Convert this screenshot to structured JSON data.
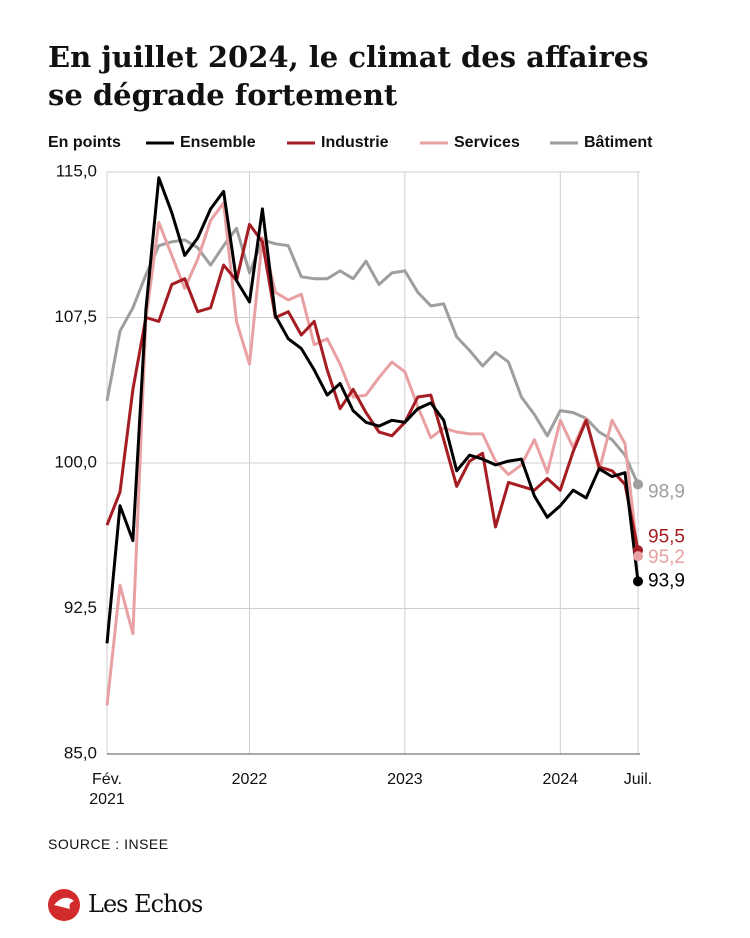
{
  "chart_data": {
    "type": "line",
    "title": "En juillet 2024, le climat des affaires se dégrade fortement",
    "y_label": "En points",
    "source": "SOURCE : INSEE",
    "logo": "Les Echos",
    "x": [
      "2021-02",
      "2021-03",
      "2021-04",
      "2021-05",
      "2021-06",
      "2021-07",
      "2021-08",
      "2021-09",
      "2021-10",
      "2021-11",
      "2021-12",
      "2022-01",
      "2022-02",
      "2022-03",
      "2022-04",
      "2022-05",
      "2022-06",
      "2022-07",
      "2022-08",
      "2022-09",
      "2022-10",
      "2022-11",
      "2022-12",
      "2023-01",
      "2023-02",
      "2023-03",
      "2023-04",
      "2023-05",
      "2023-06",
      "2023-07",
      "2023-08",
      "2023-09",
      "2023-10",
      "2023-11",
      "2023-12",
      "2024-01",
      "2024-02",
      "2024-03",
      "2024-04",
      "2024-05",
      "2024-06",
      "2024-07"
    ],
    "series": [
      {
        "name": "Ensemble",
        "color": "#000000",
        "values": [
          90.7,
          97.8,
          96.0,
          107.9,
          114.7,
          112.9,
          110.7,
          111.6,
          113.1,
          114.0,
          109.4,
          108.3,
          113.1,
          107.6,
          106.4,
          105.9,
          104.8,
          103.5,
          104.1,
          102.7,
          102.1,
          101.9,
          102.2,
          102.1,
          102.8,
          103.1,
          102.2,
          99.6,
          100.4,
          100.2,
          99.9,
          100.1,
          100.2,
          98.3,
          97.2,
          97.8,
          98.6,
          98.2,
          99.7,
          99.3,
          99.5,
          93.9
        ],
        "value_labels": [
          null,
          null,
          null,
          null,
          null,
          null,
          null,
          null,
          null,
          null,
          null,
          null,
          null,
          null,
          null,
          null,
          null,
          null,
          null,
          null,
          null,
          null,
          null,
          null,
          null,
          null,
          null,
          null,
          null,
          null,
          null,
          null,
          null,
          null,
          null,
          null,
          null,
          null,
          null,
          null,
          null,
          "93,9"
        ]
      },
      {
        "name": "Industrie",
        "color": "#a51c22",
        "values": [
          96.8,
          98.5,
          103.8,
          107.5,
          107.3,
          109.2,
          109.5,
          107.8,
          108.0,
          110.2,
          109.4,
          112.3,
          111.4,
          107.5,
          107.8,
          106.6,
          107.3,
          104.8,
          102.8,
          103.8,
          102.6,
          101.6,
          101.4,
          102.1,
          103.4,
          103.5,
          101.2,
          98.8,
          100.1,
          100.5,
          96.7,
          99.0,
          98.8,
          98.6,
          99.2,
          98.6,
          100.6,
          102.2,
          99.8,
          99.6,
          98.9,
          95.5
        ],
        "value_labels": [
          null,
          null,
          null,
          null,
          null,
          null,
          null,
          null,
          null,
          null,
          null,
          null,
          null,
          null,
          null,
          null,
          null,
          null,
          null,
          null,
          null,
          null,
          null,
          null,
          null,
          null,
          null,
          null,
          null,
          null,
          null,
          null,
          null,
          null,
          null,
          null,
          null,
          null,
          null,
          null,
          null,
          "95,5"
        ]
      },
      {
        "name": "Services",
        "color": "#e9a0a2",
        "values": [
          87.5,
          93.7,
          91.2,
          107.4,
          112.4,
          110.7,
          109.0,
          110.5,
          112.5,
          113.4,
          107.3,
          105.1,
          111.6,
          108.8,
          108.4,
          108.7,
          106.1,
          106.4,
          105.1,
          103.4,
          103.5,
          104.4,
          105.2,
          104.7,
          102.9,
          101.3,
          101.8,
          101.6,
          101.5,
          101.5,
          100.1,
          99.4,
          99.9,
          101.2,
          99.5,
          102.2,
          100.8,
          102.3,
          99.6,
          102.2,
          101.0,
          95.2
        ],
        "value_labels": [
          null,
          null,
          null,
          null,
          null,
          null,
          null,
          null,
          null,
          null,
          null,
          null,
          null,
          null,
          null,
          null,
          null,
          null,
          null,
          null,
          null,
          null,
          null,
          null,
          null,
          null,
          null,
          null,
          null,
          null,
          null,
          null,
          null,
          null,
          null,
          null,
          null,
          null,
          null,
          null,
          null,
          "95,2"
        ]
      },
      {
        "name": "Bâtiment",
        "color": "#9e9e9e",
        "values": [
          103.2,
          106.8,
          108.0,
          109.7,
          111.2,
          111.4,
          111.5,
          111.1,
          110.2,
          111.2,
          112.1,
          109.8,
          111.5,
          111.3,
          111.2,
          109.6,
          109.5,
          109.5,
          109.9,
          109.5,
          110.4,
          109.2,
          109.8,
          109.9,
          108.8,
          108.1,
          108.2,
          106.5,
          105.8,
          105.0,
          105.7,
          105.2,
          103.4,
          102.5,
          101.4,
          102.7,
          102.6,
          102.3,
          101.6,
          101.2,
          100.4,
          98.9
        ],
        "value_labels": [
          null,
          null,
          null,
          null,
          null,
          null,
          null,
          null,
          null,
          null,
          null,
          null,
          null,
          null,
          null,
          null,
          null,
          null,
          null,
          null,
          null,
          null,
          null,
          null,
          null,
          null,
          null,
          null,
          null,
          null,
          null,
          null,
          null,
          null,
          null,
          null,
          null,
          null,
          null,
          null,
          null,
          "98,9"
        ]
      }
    ],
    "xticks": [
      {
        "value": "2021-02",
        "label": "Fév. 2021"
      },
      {
        "value": "2022-01",
        "label": "2022"
      },
      {
        "value": "2023-01",
        "label": "2023"
      },
      {
        "value": "2024-01",
        "label": "2024"
      },
      {
        "value": "2024-07",
        "label": "Juil."
      }
    ],
    "ylim": [
      85,
      115
    ],
    "yticks": [
      {
        "value": 85,
        "label": "85,0"
      },
      {
        "value": 92.5,
        "label": "92,5"
      },
      {
        "value": 100,
        "label": "100,0"
      },
      {
        "value": 107.5,
        "label": "107,5"
      },
      {
        "value": 115,
        "label": "115,0"
      }
    ],
    "grid": true
  }
}
